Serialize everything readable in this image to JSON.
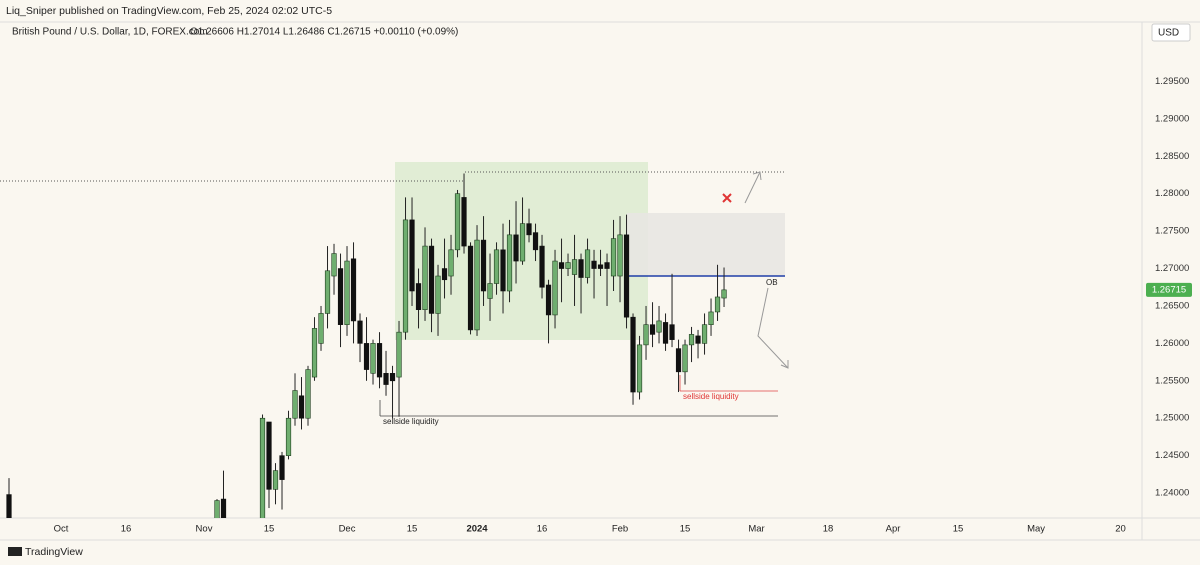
{
  "header": {
    "publisher": "Liq_Sniper published on TradingView.com, Feb 25, 2024 02:02 UTC-5",
    "currency": "USD",
    "brand": "TradingView"
  },
  "chart_data": {
    "type": "candlestick",
    "title": "British Pound / U.S. Dollar, 1D, FOREX.com",
    "ohlc_text": "O1.26606  H1.27014  L1.26486  C1.26715  +0.00110 (+0.09%)",
    "x": [
      0,
      32,
      33,
      39,
      40,
      41,
      42,
      43,
      44,
      45,
      46,
      47,
      48,
      49,
      50,
      51,
      52,
      53,
      54,
      55,
      56,
      57,
      58,
      59,
      60,
      61,
      62,
      63,
      64,
      65,
      66,
      67,
      68,
      69,
      70,
      71,
      72,
      73,
      74,
      75,
      76,
      77,
      78,
      79,
      80,
      81,
      82,
      83,
      84,
      85,
      86,
      87,
      88,
      89,
      90,
      91,
      92,
      93,
      94,
      95,
      96,
      97,
      98,
      99,
      100,
      101,
      102,
      103,
      104,
      105,
      106,
      107,
      108,
      109,
      110
    ],
    "open": [
      1.2398,
      1.236,
      1.2392,
      1.228,
      1.2495,
      1.2405,
      1.245,
      1.245,
      1.25,
      1.253,
      1.25,
      1.2555,
      1.26,
      1.264,
      1.269,
      1.27,
      1.2625,
      1.2713,
      1.263,
      1.26,
      1.256,
      1.26,
      1.256,
      1.256,
      1.2555,
      1.2615,
      1.2765,
      1.268,
      1.2645,
      1.273,
      1.264,
      1.27,
      1.269,
      1.2725,
      1.2795,
      1.273,
      1.2618,
      1.2738,
      1.266,
      1.268,
      1.2725,
      1.267,
      1.2745,
      1.271,
      1.276,
      1.2748,
      1.273,
      1.2678,
      1.2638,
      1.2708,
      1.27,
      1.2692,
      1.2712,
      1.2688,
      1.271,
      1.2705,
      1.2708,
      1.269,
      1.269,
      1.2745,
      1.2635,
      1.2535,
      1.2598,
      1.2625,
      1.2615,
      1.2628,
      1.2625,
      1.2593,
      1.2562,
      1.2598,
      1.261,
      1.26,
      1.2625,
      1.2642,
      1.26606
    ],
    "high": [
      1.242,
      1.2392,
      1.243,
      1.2505,
      1.2495,
      1.244,
      1.2455,
      1.251,
      1.256,
      1.2555,
      1.257,
      1.2635,
      1.265,
      1.273,
      1.2733,
      1.272,
      1.273,
      1.2735,
      1.264,
      1.2635,
      1.2605,
      1.2615,
      1.259,
      1.257,
      1.263,
      1.2795,
      1.2795,
      1.27,
      1.2755,
      1.274,
      1.2705,
      1.274,
      1.2745,
      1.2805,
      1.2827,
      1.2735,
      1.2758,
      1.277,
      1.272,
      1.2735,
      1.276,
      1.2765,
      1.279,
      1.2795,
      1.278,
      1.276,
      1.2745,
      1.2685,
      1.2725,
      1.274,
      1.272,
      1.2745,
      1.272,
      1.274,
      1.2725,
      1.2725,
      1.272,
      1.2765,
      1.277,
      1.2772,
      1.264,
      1.261,
      1.265,
      1.2655,
      1.265,
      1.264,
      1.2693,
      1.2605,
      1.2605,
      1.2622,
      1.2618,
      1.264,
      1.266,
      1.2705,
      1.27014
    ],
    "low": [
      1.235,
      1.2355,
      1.235,
      1.2275,
      1.238,
      1.2385,
      1.2378,
      1.2445,
      1.249,
      1.2485,
      1.249,
      1.255,
      1.259,
      1.262,
      1.2665,
      1.2595,
      1.261,
      1.26,
      1.2575,
      1.255,
      1.2545,
      1.254,
      1.253,
      1.25,
      1.2502,
      1.2605,
      1.265,
      1.262,
      1.263,
      1.2615,
      1.261,
      1.266,
      1.2665,
      1.2715,
      1.272,
      1.2612,
      1.261,
      1.265,
      1.263,
      1.2665,
      1.264,
      1.2655,
      1.268,
      1.2705,
      1.2735,
      1.271,
      1.266,
      1.26,
      1.262,
      1.2655,
      1.269,
      1.265,
      1.264,
      1.268,
      1.266,
      1.269,
      1.265,
      1.267,
      1.2655,
      1.262,
      1.2518,
      1.2525,
      1.2578,
      1.2595,
      1.26,
      1.259,
      1.2595,
      1.2535,
      1.2545,
      1.2575,
      1.258,
      1.2585,
      1.261,
      1.263,
      1.26486
    ],
    "close": [
      1.2362,
      1.239,
      1.236,
      1.25,
      1.2405,
      1.243,
      1.2418,
      1.25,
      1.2537,
      1.25,
      1.2565,
      1.262,
      1.264,
      1.2697,
      1.272,
      1.2625,
      1.271,
      1.263,
      1.26,
      1.2565,
      1.26,
      1.2555,
      1.2545,
      1.255,
      1.2615,
      1.2765,
      1.267,
      1.2645,
      1.273,
      1.264,
      1.269,
      1.2685,
      1.2725,
      1.28,
      1.273,
      1.2618,
      1.2738,
      1.267,
      1.268,
      1.2725,
      1.267,
      1.2745,
      1.271,
      1.276,
      1.2745,
      1.2725,
      1.2675,
      1.2638,
      1.271,
      1.27,
      1.2708,
      1.2712,
      1.2688,
      1.2725,
      1.27,
      1.27,
      1.27,
      1.274,
      1.2745,
      1.2635,
      1.2535,
      1.2598,
      1.2625,
      1.2612,
      1.263,
      1.26,
      1.2605,
      1.2562,
      1.2598,
      1.2612,
      1.26,
      1.2625,
      1.2642,
      1.2662,
      1.26715
    ],
    "up_color": "#6fae6f",
    "down_color": "#111111",
    "border_color": "#1e3d1e",
    "xlim": [
      -1.385,
      174.3
    ],
    "xticks": [
      {
        "value": 8,
        "label": "Oct"
      },
      {
        "value": 18,
        "label": "16"
      },
      {
        "value": 30,
        "label": "Nov"
      },
      {
        "value": 40,
        "label": "15"
      },
      {
        "value": 52,
        "label": "Dec"
      },
      {
        "value": 62,
        "label": "15"
      },
      {
        "value": 72,
        "label": "2024"
      },
      {
        "value": 82,
        "label": "16"
      },
      {
        "value": 94,
        "label": "Feb"
      },
      {
        "value": 104,
        "label": "15"
      },
      {
        "value": 115,
        "label": "Mar"
      },
      {
        "value": 126,
        "label": "18"
      },
      {
        "value": 136,
        "label": "Apr"
      },
      {
        "value": 146,
        "label": "15"
      },
      {
        "value": 158,
        "label": "May"
      },
      {
        "value": 171,
        "label": "20"
      }
    ],
    "ylim": [
      1.23667,
      1.30187
    ],
    "yticks": [
      {
        "value": 1.295,
        "label": "1.29500"
      },
      {
        "value": 1.29,
        "label": "1.29000"
      },
      {
        "value": 1.285,
        "label": "1.28500"
      },
      {
        "value": 1.28,
        "label": "1.28000"
      },
      {
        "value": 1.275,
        "label": "1.27500"
      },
      {
        "value": 1.27,
        "label": "1.27000"
      },
      {
        "value": 1.265,
        "label": "1.26500"
      },
      {
        "value": 1.26,
        "label": "1.26000"
      },
      {
        "value": 1.255,
        "label": "1.25500"
      },
      {
        "value": 1.25,
        "label": "1.25000"
      },
      {
        "value": 1.245,
        "label": "1.24500"
      },
      {
        "value": 1.24,
        "label": "1.24000"
      }
    ],
    "grid": false,
    "annotations": {
      "ob": "OB",
      "sellside_1": "sellside liquidity",
      "sellside_2": "sellside liquidity"
    }
  }
}
